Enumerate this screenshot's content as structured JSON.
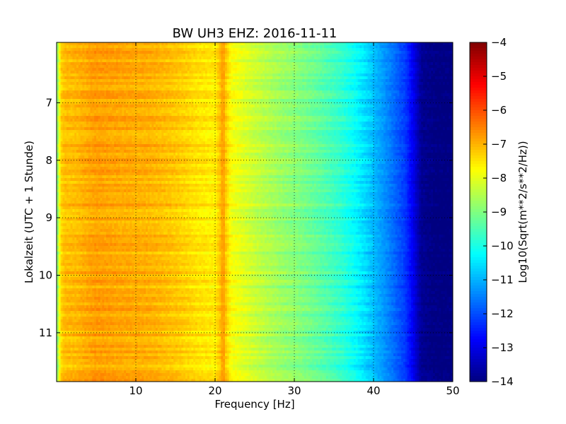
{
  "chart_data": {
    "type": "heatmap",
    "title": "BW UH3 EHZ: 2016-11-11",
    "xlabel": "Frequency [Hz]",
    "ylabel": "Lokalzeit (UTC + 1 Stunde)",
    "colorbar_label": "Log10(Sqrt(m**2/s**2/Hz))",
    "xlim": [
      0,
      50
    ],
    "ylim": [
      5.95,
      11.85
    ],
    "y_inverted": true,
    "x_ticks": [
      10,
      20,
      30,
      40,
      50
    ],
    "y_ticks": [
      7,
      8,
      9,
      10,
      11
    ],
    "colorbar_range": [
      -14,
      -4
    ],
    "colorbar_ticks": [
      -4,
      -5,
      -6,
      -7,
      -8,
      -9,
      -10,
      -11,
      -12,
      -13,
      -14
    ],
    "colormap": "jet",
    "grid": true,
    "frequency_profile": {
      "frequency_hz": [
        0,
        0.5,
        1,
        2,
        5,
        8,
        12,
        15,
        18,
        20,
        21,
        22,
        25,
        28,
        30,
        33,
        36,
        38,
        40,
        42,
        44,
        45,
        46,
        48,
        50
      ],
      "log10_amplitude": [
        -9.2,
        -7.4,
        -7.1,
        -7.1,
        -6.8,
        -6.9,
        -7.0,
        -7.2,
        -7.5,
        -7.6,
        -6.9,
        -7.8,
        -8.3,
        -8.7,
        -8.9,
        -9.3,
        -9.8,
        -10.3,
        -10.9,
        -11.5,
        -12.2,
        -12.9,
        -13.8,
        -14.0,
        -14.0
      ]
    },
    "notable_features": [
      {
        "label": "narrow spectral line",
        "frequency_hz": 21.0,
        "log10_amplitude": -6.9
      }
    ]
  }
}
